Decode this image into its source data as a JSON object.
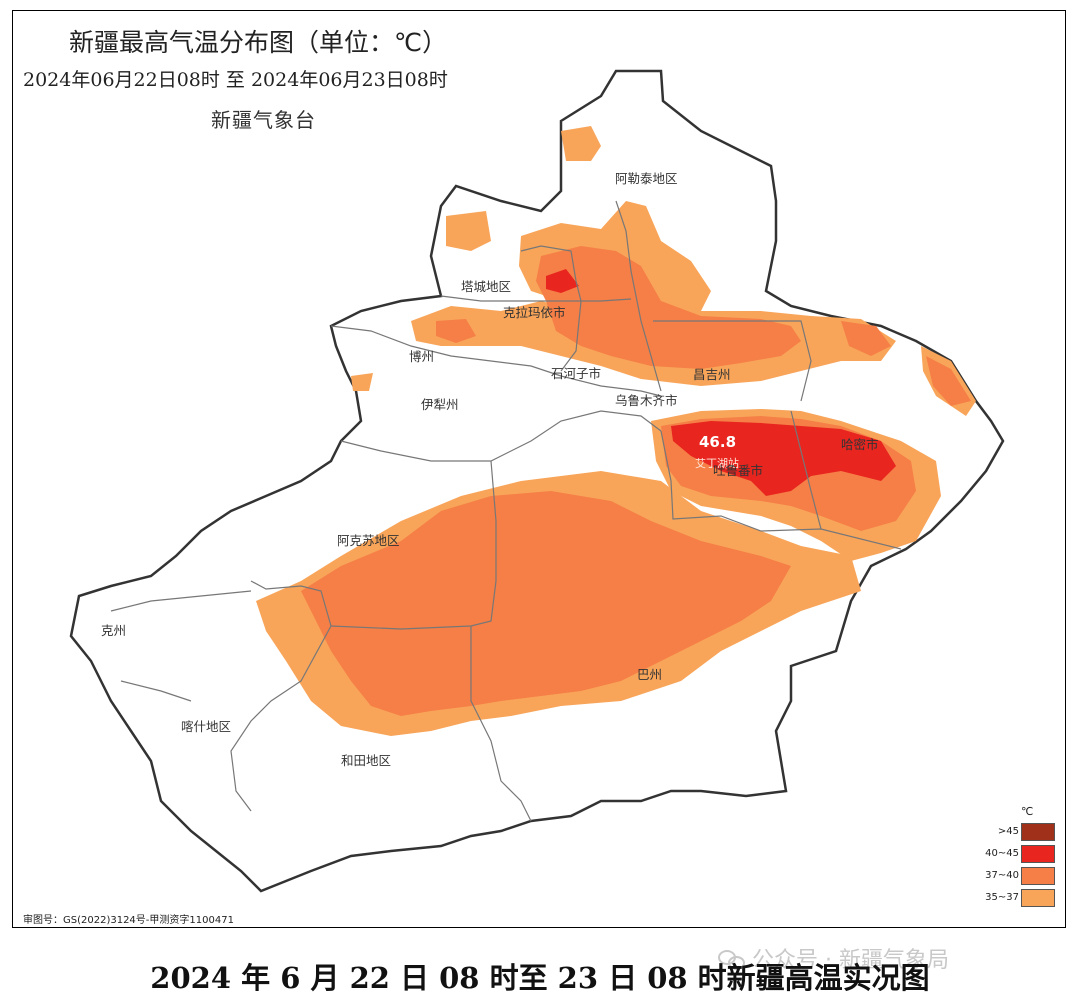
{
  "map": {
    "title": "新疆最高气温分布图（单位：℃）",
    "period": "2024年06月22日08时  至  2024年06月23日08时",
    "agency": "新疆气象台",
    "approval": "审图号：GS(2022)3124号-甲测资字1100471",
    "max_value": "46.8",
    "regions": {
      "altay": "阿勒泰地区",
      "tacheng": "塔城地区",
      "karamay": "克拉玛依市",
      "bozhou": "博州",
      "shihezi": "石河子市",
      "changji": "昌吉州",
      "urumqi": "乌鲁木齐市",
      "yili": "伊犁州",
      "turpan": "吐鲁番市",
      "aiding": "艾丁湖站",
      "hami": "哈密市",
      "aksu": "阿克苏地区",
      "kezhou": "克州",
      "bazhou": "巴州",
      "kashgar": "喀什地区",
      "hotan": "和田地区"
    },
    "colors": {
      "gt45": "#a0301a",
      "c40_45": "#e8251f",
      "c37_40": "#f57f46",
      "c35_37": "#f8a55a"
    }
  },
  "legend": {
    "unit": "℃",
    "items": [
      {
        "label": ">45",
        "color": "#a0301a"
      },
      {
        "label": "40~45",
        "color": "#e8251f"
      },
      {
        "label": "37~40",
        "color": "#f57f46"
      },
      {
        "label": "35~37",
        "color": "#f8a55a"
      }
    ]
  },
  "caption": "2024 年 6 月 22 日 08 时至 23 日 08 时新疆高温实况图",
  "watermark": "公众号 · 新疆气象局"
}
